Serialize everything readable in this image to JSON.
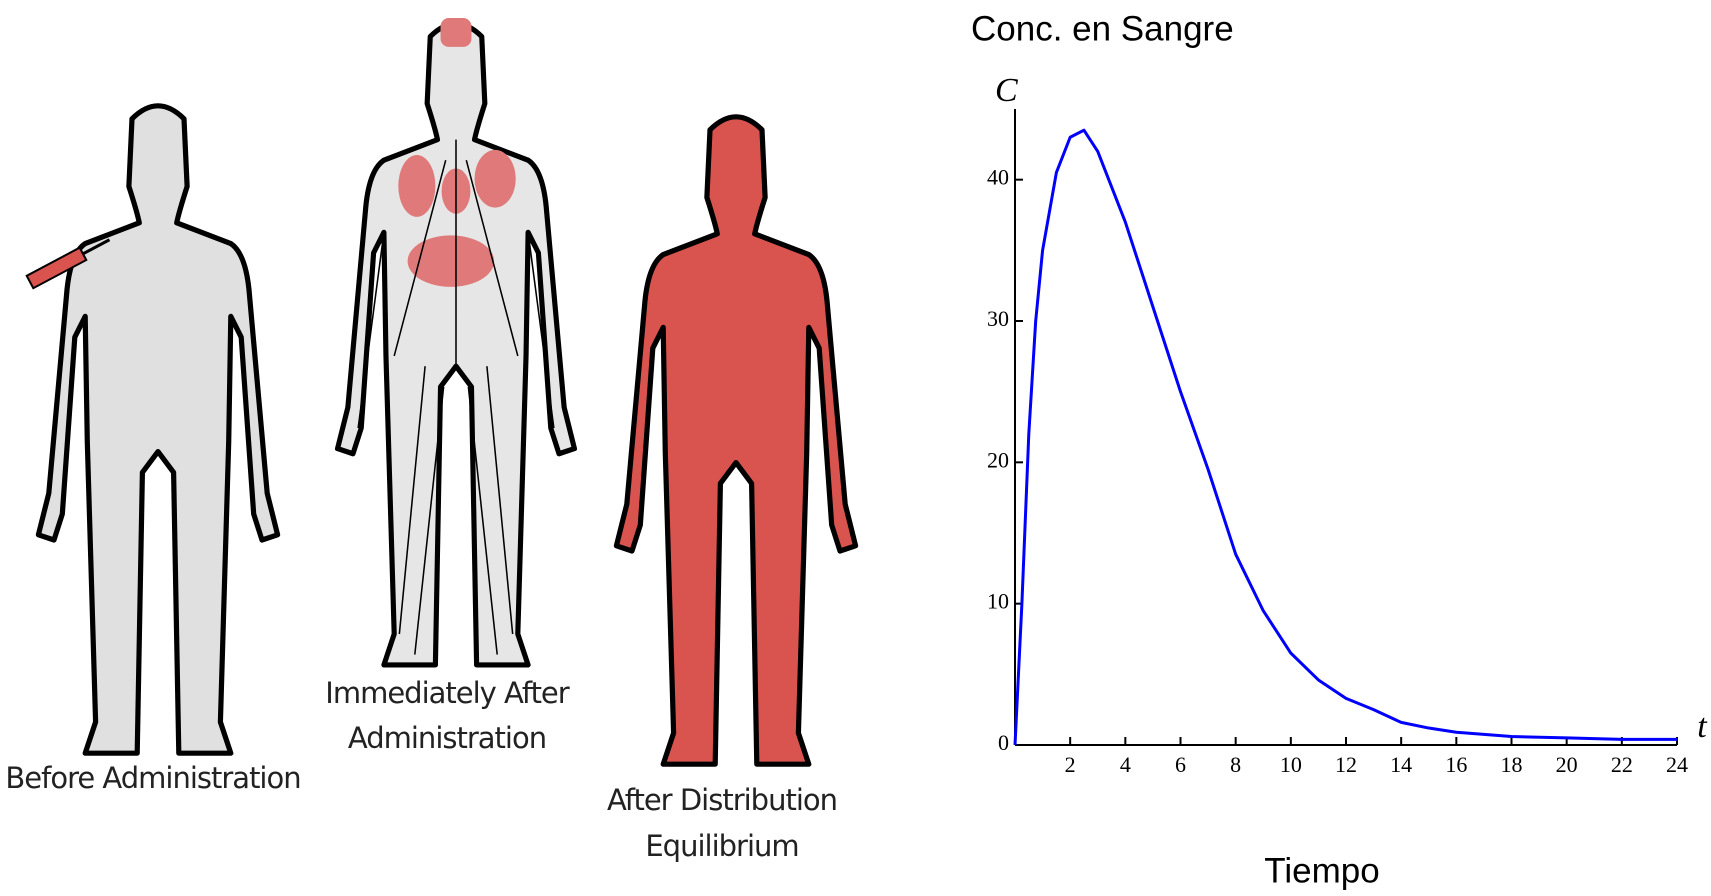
{
  "figures": [
    {
      "label": [
        "Before Administration"
      ]
    },
    {
      "label": [
        "Immediately After",
        "Administration"
      ]
    },
    {
      "label": [
        "After Distribution",
        "Equilibrium"
      ]
    }
  ],
  "chart_data": {
    "type": "line",
    "title": "Conc. en Sangre",
    "x_label": "Tiempo",
    "x_axis_symbol": "t",
    "y_axis_symbol": "C",
    "x": [
      0,
      0.25,
      0.5,
      0.75,
      1,
      1.5,
      2,
      2.5,
      3,
      4,
      5,
      6,
      7,
      8,
      9,
      10,
      11,
      12,
      13,
      14,
      15,
      16,
      18,
      20,
      22,
      24
    ],
    "series": [
      {
        "name": "C",
        "color": "#0000ff",
        "values": [
          0,
          10,
          22,
          30,
          35,
          40.5,
          43,
          43.5,
          42,
          37,
          31,
          25,
          19.5,
          13.5,
          9.5,
          6.5,
          4.6,
          3.3,
          2.5,
          1.6,
          1.2,
          0.9,
          0.6,
          0.5,
          0.4,
          0.4
        ]
      }
    ],
    "xlim": [
      0,
      24
    ],
    "ylim": [
      0,
      45
    ],
    "xticks": [
      2,
      4,
      6,
      8,
      10,
      12,
      14,
      16,
      18,
      20,
      22,
      24
    ],
    "yticks": [
      0,
      10,
      20,
      30,
      40
    ]
  }
}
